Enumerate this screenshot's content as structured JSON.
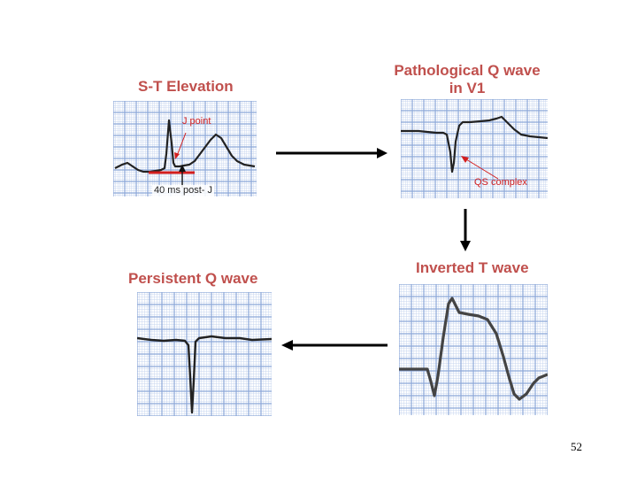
{
  "panels": {
    "st_elevation": {
      "title": "S-T Elevation",
      "label_j_point": "J point",
      "label_40ms": "40 ms post- J"
    },
    "pathological_q": {
      "title_line1": "Pathological Q wave",
      "title_line2": "in V1",
      "label_qs": "QS complex"
    },
    "inverted_t": {
      "title": "Inverted T wave"
    },
    "persistent_q": {
      "title": "Persistent Q wave"
    }
  },
  "page_number": "52",
  "colors": {
    "title": "#c0504d",
    "grid_major": "#8aa6d8",
    "grid_minor": "#c7d6ef",
    "trace": "#222222",
    "marker": "#d21e1e",
    "annotation_text": "#d21e1e"
  }
}
